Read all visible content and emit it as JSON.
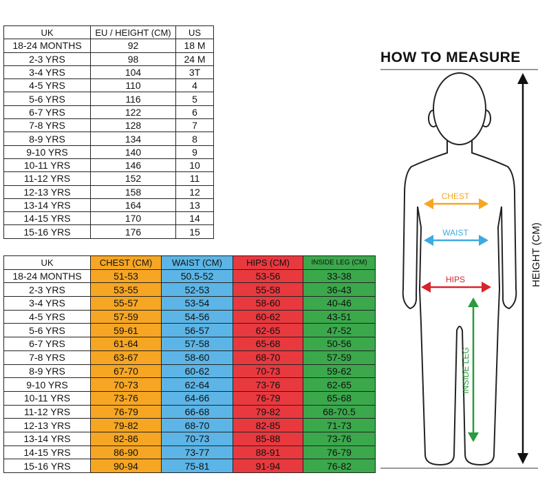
{
  "size_table": {
    "headers": [
      "UK",
      "EU / HEIGHT (CM)",
      "US"
    ],
    "rows": [
      [
        "18-24 MONTHS",
        "92",
        "18 M"
      ],
      [
        "2-3 YRS",
        "98",
        "24 M"
      ],
      [
        "3-4 YRS",
        "104",
        "3T"
      ],
      [
        "4-5 YRS",
        "110",
        "4"
      ],
      [
        "5-6 YRS",
        "116",
        "5"
      ],
      [
        "6-7 YRS",
        "122",
        "6"
      ],
      [
        "7-8 YRS",
        "128",
        "7"
      ],
      [
        "8-9 YRS",
        "134",
        "8"
      ],
      [
        "9-10 YRS",
        "140",
        "9"
      ],
      [
        "10-11 YRS",
        "146",
        "10"
      ],
      [
        "11-12 YRS",
        "152",
        "11"
      ],
      [
        "12-13 YRS",
        "158",
        "12"
      ],
      [
        "13-14 YRS",
        "164",
        "13"
      ],
      [
        "14-15 YRS",
        "170",
        "14"
      ],
      [
        "15-16 YRS",
        "176",
        "15"
      ]
    ]
  },
  "measure_table": {
    "headers": [
      "UK",
      "CHEST (CM)",
      "WAIST (CM)",
      "HIPS (CM)",
      "INSIDE LEG (CM)"
    ],
    "rows": [
      [
        "18-24 MONTHS",
        "51-53",
        "50.5-52",
        "53-56",
        "33-38"
      ],
      [
        "2-3 YRS",
        "53-55",
        "52-53",
        "55-58",
        "36-43"
      ],
      [
        "3-4 YRS",
        "55-57",
        "53-54",
        "58-60",
        "40-46"
      ],
      [
        "4-5 YRS",
        "57-59",
        "54-56",
        "60-62",
        "43-51"
      ],
      [
        "5-6 YRS",
        "59-61",
        "56-57",
        "62-65",
        "47-52"
      ],
      [
        "6-7 YRS",
        "61-64",
        "57-58",
        "65-68",
        "50-56"
      ],
      [
        "7-8 YRS",
        "63-67",
        "58-60",
        "68-70",
        "57-59"
      ],
      [
        "8-9 YRS",
        "67-70",
        "60-62",
        "70-73",
        "59-62"
      ],
      [
        "9-10 YRS",
        "70-73",
        "62-64",
        "73-76",
        "62-65"
      ],
      [
        "10-11 YRS",
        "73-76",
        "64-66",
        "76-79",
        "65-68"
      ],
      [
        "11-12 YRS",
        "76-79",
        "66-68",
        "79-82",
        "68-70.5"
      ],
      [
        "12-13 YRS",
        "79-82",
        "68-70",
        "82-85",
        "71-73"
      ],
      [
        "13-14 YRS",
        "82-86",
        "70-73",
        "85-88",
        "73-76"
      ],
      [
        "14-15 YRS",
        "86-90",
        "73-77",
        "88-91",
        "76-79"
      ],
      [
        "15-16 YRS",
        "90-94",
        "75-81",
        "91-94",
        "76-82"
      ]
    ]
  },
  "guide": {
    "title": "HOW TO MEASURE",
    "height_label": "HEIGHT (CM)",
    "chest_label": "CHEST",
    "waist_label": "WAIST",
    "hips_label": "HIPS",
    "inside_leg_label": "INSIDE LEG"
  }
}
